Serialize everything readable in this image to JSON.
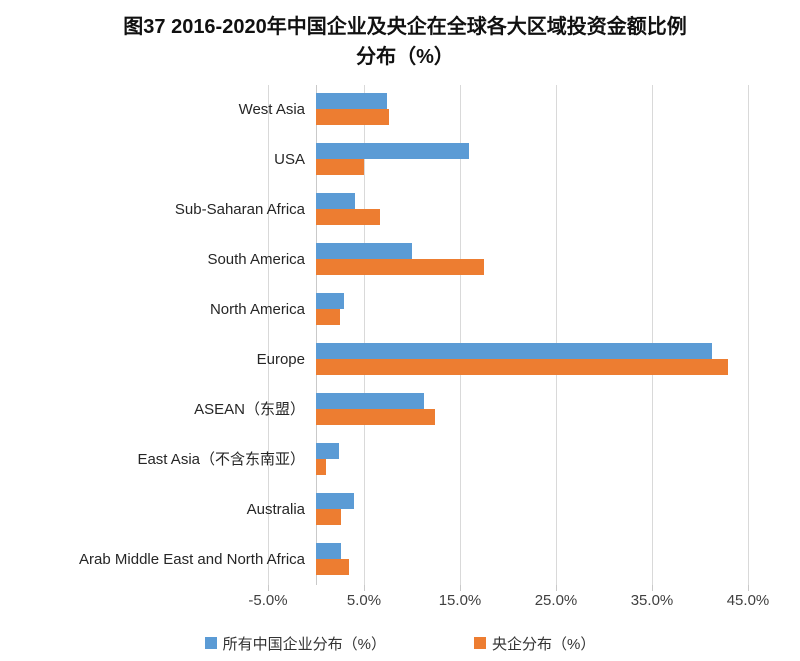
{
  "title": {
    "line1": "图37 2016-2020年中国企业及央企在全球各大区域投资金额比例",
    "line2": "分布（%）"
  },
  "chart_data": {
    "type": "bar",
    "orientation": "horizontal",
    "title": "图37 2016-2020年中国企业及央企在全球各大区域投资金额比例分布（%）",
    "categories": [
      "West Asia",
      "USA",
      "Sub-Saharan Africa",
      "South America",
      "North America",
      "Europe",
      "ASEAN（东盟）",
      "East Asia（不含东南亚）",
      "Australia",
      "Arab Middle East and North Africa"
    ],
    "series": [
      {
        "name": "所有中国企业分布（%）",
        "color": "#5B9BD5",
        "values": [
          7.4,
          15.9,
          4.1,
          10.0,
          2.9,
          41.2,
          11.2,
          2.4,
          4.0,
          2.6
        ]
      },
      {
        "name": "央企分布（%）",
        "color": "#ED7D31",
        "values": [
          7.6,
          5.0,
          6.7,
          17.5,
          2.5,
          42.9,
          12.4,
          1.0,
          2.6,
          3.4
        ]
      }
    ],
    "x_axis": {
      "ticks": [
        "-5.0%",
        "5.0%",
        "15.0%",
        "25.0%",
        "35.0%",
        "45.0%"
      ],
      "min": -5,
      "max": 45,
      "tick_interval": 10,
      "unit": "%"
    },
    "grid": true,
    "legend_position": "bottom",
    "gridline_color": "#D9D9D9",
    "background": "#FFFFFF"
  }
}
